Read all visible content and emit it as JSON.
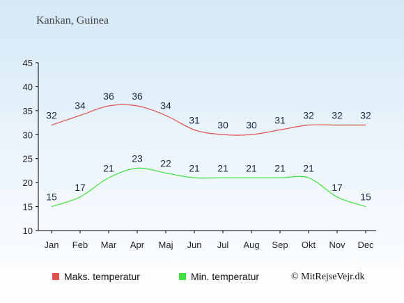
{
  "location": "Kankan, Guinea",
  "copyright": "© MitRejseVejr.dk",
  "chart_data": {
    "type": "line",
    "title": "Kankan, Guinea",
    "categories": [
      "Jan",
      "Feb",
      "Mar",
      "Apr",
      "Maj",
      "Jun",
      "Jul",
      "Aug",
      "Sep",
      "Okt",
      "Nov",
      "Dec"
    ],
    "ylim": [
      10,
      45
    ],
    "yticks": [
      10,
      15,
      20,
      25,
      30,
      35,
      40,
      45
    ],
    "grid": false,
    "legend_position": "bottom",
    "series": [
      {
        "name": "Maks. temperatur",
        "color": "#e24f4f",
        "values": [
          32,
          34,
          36,
          36,
          34,
          31,
          30,
          30,
          31,
          32,
          32,
          32
        ]
      },
      {
        "name": "Min. temperatur",
        "color": "#3fe03f",
        "values": [
          15,
          17,
          21,
          23,
          22,
          21,
          21,
          21,
          21,
          21,
          17,
          15
        ]
      }
    ]
  }
}
